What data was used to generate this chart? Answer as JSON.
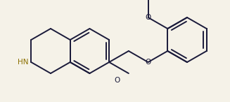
{
  "bg_color": "#f5f2e8",
  "line_color": "#1a1a3a",
  "nh_color": "#8b7000",
  "figsize": [
    3.27,
    1.46
  ],
  "dpi": 100,
  "xlim": [
    0,
    327
  ],
  "ylim": [
    0,
    146
  ]
}
